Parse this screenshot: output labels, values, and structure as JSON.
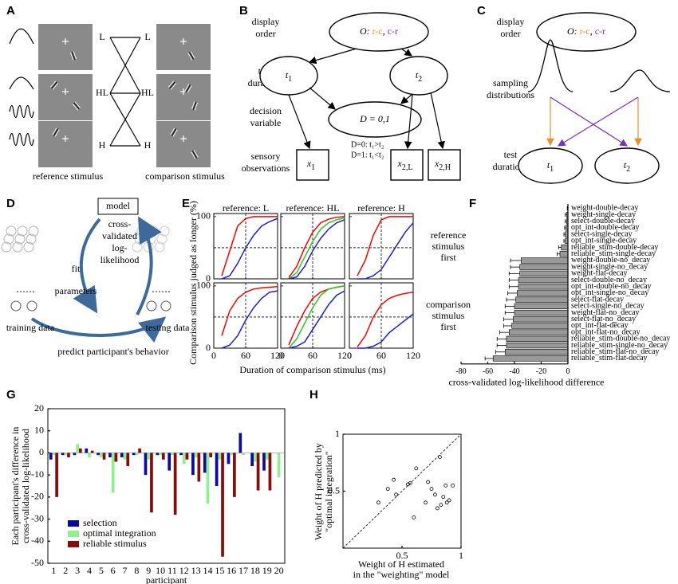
{
  "panel_labels": [
    "A",
    "B",
    "C",
    "D",
    "E",
    "F",
    "G",
    "H"
  ],
  "panel_a": {
    "levels": [
      {
        "label": "L",
        "color": "#2323d8"
      },
      {
        "label": "HL",
        "color": "#22c322"
      },
      {
        "label": "H",
        "color": "#e01b1b"
      }
    ],
    "reference_caption": "reference stimulus",
    "comparison_caption": "comparison stimulus"
  },
  "panel_b": {
    "display_order": [
      "display",
      "order"
    ],
    "order_symbol": "O:",
    "order_separator": ",",
    "orders": [
      {
        "label": "r-c",
        "color": "#f28c28"
      },
      {
        "label": "c-r",
        "color": "#7b2fbf"
      }
    ],
    "true_durations": [
      "true",
      "durations"
    ],
    "t_nodes": [
      {
        "label": "t",
        "sub": "1"
      },
      {
        "label": "t",
        "sub": "2"
      }
    ],
    "decision_variable": [
      "decision",
      "variable"
    ],
    "decision_node": "D = 0,1",
    "decision_rules": [
      "D=0: t₁>t₂",
      "D=1: t₁<t₂"
    ],
    "sensory_observations": [
      "sensory",
      "observations"
    ],
    "x_nodes": [
      {
        "label": "x",
        "sub": "1"
      },
      {
        "label": "x",
        "sub": "2,L"
      },
      {
        "label": "x",
        "sub": "2,H"
      }
    ]
  },
  "panel_c": {
    "display_order": [
      "display",
      "order"
    ],
    "order_symbol": "O:",
    "order_separator": ",",
    "orders": [
      {
        "label": "r-c",
        "color": "#f28c28"
      },
      {
        "label": "c-r",
        "color": "#7b2fbf"
      }
    ],
    "sampling_distributions": [
      "sampling",
      "distributions"
    ],
    "test_durations": [
      "test",
      "durations"
    ],
    "t_nodes": [
      {
        "label": "t",
        "sub": "1"
      },
      {
        "label": "t",
        "sub": "2"
      }
    ]
  },
  "panel_d": {
    "model": "model",
    "training_data": "training data",
    "fit_parameters": [
      "fit",
      "parameters"
    ],
    "cross_validated": [
      "cross-",
      "validated",
      "log-",
      "likelihood"
    ],
    "testing_data": "testing data",
    "predict": "predict participant's behavior"
  },
  "chart_data": [
    {
      "type": "line",
      "ylabel": "Comparison stimulus judged as longer (%)",
      "xlabel": "Duration of comparison stimulus (ms)",
      "xlim": [
        0,
        120
      ],
      "ylim": [
        0,
        105
      ],
      "xticks": [
        0,
        60,
        120
      ],
      "yticks": [
        0,
        100
      ],
      "dashed_x": 60,
      "dashed_y": 50,
      "x": [
        15,
        30,
        45,
        60,
        75,
        90,
        105,
        120
      ],
      "column_titles": [
        "reference: L",
        "reference: HL",
        "reference: H"
      ],
      "row_labels": [
        [
          "reference",
          "stimulus",
          "first"
        ],
        [
          "comparison",
          "stimulus",
          "first"
        ]
      ],
      "subplots": [
        {
          "series": [
            {
              "color": "#ff0000",
              "values": [
                5,
                45,
                85,
                97,
                100,
                100,
                100,
                100
              ]
            },
            {
              "color": "#1f1fd0",
              "values": [
                0,
                5,
                25,
                50,
                70,
                85,
                92,
                97
              ]
            }
          ]
        },
        {
          "series": [
            {
              "color": "#ff0000",
              "values": [
                2,
                20,
                50,
                75,
                90,
                96,
                99,
                100
              ]
            },
            {
              "color": "#22cc22",
              "values": [
                0,
                10,
                35,
                60,
                80,
                90,
                95,
                98
              ]
            },
            {
              "color": "#1f1fd0",
              "values": [
                0,
                3,
                20,
                45,
                65,
                80,
                90,
                95
              ]
            }
          ]
        },
        {
          "series": [
            {
              "color": "#ff0000",
              "values": [
                5,
                30,
                70,
                95,
                100,
                100,
                100,
                100
              ]
            },
            {
              "color": "#1f1fd0",
              "values": [
                0,
                0,
                5,
                15,
                35,
                55,
                75,
                90
              ]
            }
          ]
        },
        {
          "series": [
            {
              "color": "#ff0000",
              "values": [
                20,
                60,
                80,
                90,
                95,
                97,
                98,
                99
              ]
            },
            {
              "color": "#1f1fd0",
              "values": [
                0,
                5,
                20,
                45,
                65,
                80,
                90,
                92
              ]
            }
          ]
        },
        {
          "series": [
            {
              "color": "#ff0000",
              "values": [
                5,
                35,
                60,
                80,
                90,
                95,
                98,
                100
              ]
            },
            {
              "color": "#22cc22",
              "values": [
                0,
                15,
                40,
                65,
                85,
                95,
                98,
                100
              ]
            },
            {
              "color": "#1f1fd0",
              "values": [
                0,
                3,
                10,
                30,
                50,
                70,
                85,
                92
              ]
            }
          ]
        },
        {
          "series": [
            {
              "color": "#ff0000",
              "values": [
                2,
                20,
                50,
                70,
                80,
                85,
                88,
                90
              ]
            },
            {
              "color": "#1f1fd0",
              "values": [
                0,
                0,
                3,
                10,
                25,
                35,
                45,
                55
              ]
            }
          ]
        }
      ]
    },
    {
      "type": "bar",
      "orientation": "horizontal",
      "color": "#999999",
      "xlabel": "cross-validated log-likelihood difference",
      "xlim": [
        -80,
        0
      ],
      "xticks": [
        -80,
        -60,
        -40,
        -20,
        0
      ],
      "categories": [
        "weight-double-decay",
        "weight-single-decay",
        "select-double-decay",
        "opt_int-double-decay",
        "select-single-decay",
        "opt_int-single-decay",
        "reliable_stim-double-decay",
        "reliable_stim-single-decay",
        "weight-double-no_decay",
        "weight-single-no_decay",
        "weight-flat-decay",
        "select-double-no_decay",
        "opt_int-double-no_decay",
        "opt_int-single-no_decay",
        "select-flat-decay",
        "select-single-no_decay",
        "weight-flat-no_decay",
        "select-flat-no_decay",
        "opt_int-flat-decay",
        "opt_int-flat-no_decay",
        "reliable_stim-double-no_decay",
        "reliable_stim-single-no_decay",
        "reliable_stim-flat-no_decay",
        "reliable_stim-flat-decay"
      ],
      "values": [
        0,
        -1,
        -1,
        -1.5,
        -2,
        -2,
        -5,
        -6,
        -35,
        -36,
        -36,
        -37,
        -37,
        -38,
        -39,
        -40,
        -40,
        -41,
        -42,
        -44,
        -46,
        -46,
        -47,
        -56
      ],
      "errors": [
        0.5,
        1,
        1,
        1,
        1,
        1,
        2,
        2,
        8,
        7,
        8,
        7,
        7,
        7,
        7,
        7,
        7,
        7,
        6,
        7,
        7,
        7,
        7,
        6
      ]
    },
    {
      "type": "bar",
      "orientation": "vertical",
      "ylabel": [
        "Each participant's difference in",
        "cross-validated log-likelihood"
      ],
      "xlabel": "participant",
      "ylim": [
        -50,
        20
      ],
      "yticks": [
        -50,
        -40,
        -30,
        -20,
        -10,
        0,
        10,
        20
      ],
      "legend": "lower left",
      "categories": [
        "1",
        "2",
        "3",
        "4",
        "5",
        "6",
        "7",
        "8",
        "9",
        "10",
        "11",
        "12",
        "13",
        "14",
        "15",
        "16",
        "17",
        "18",
        "19",
        "20"
      ],
      "series": [
        {
          "name": "selection",
          "color": "#0a0aa0",
          "values": [
            -3,
            -1,
            -1,
            2,
            -1,
            -2,
            -2,
            -1,
            -10,
            -1,
            -8,
            -1,
            -10,
            -9,
            -15,
            -5,
            9,
            -6,
            -8,
            0
          ]
        },
        {
          "name": "optimal integration",
          "color": "#8ef08e",
          "values": [
            -1,
            -1,
            4,
            -2,
            -2,
            -18,
            -3,
            -1,
            -3,
            -1,
            -1,
            -5,
            -2,
            -23,
            -3,
            -1,
            -1,
            -4,
            -3,
            -11
          ]
        },
        {
          "name": "reliable stimulus",
          "color": "#8b0a0a",
          "values": [
            -20,
            -2,
            2,
            1,
            -3,
            -4,
            -6,
            2,
            -27,
            -3,
            -28,
            -3,
            -13,
            -2,
            -47,
            -20,
            0,
            -17,
            -17,
            0
          ]
        }
      ]
    },
    {
      "type": "scatter",
      "xlabel": [
        "Weight of H estimated",
        "in the \"weighting\" model"
      ],
      "ylabel": [
        "Weight of H predicted by",
        "\"optimal integration\""
      ],
      "xlim": [
        0,
        1
      ],
      "ylim": [
        0,
        1
      ],
      "xticks": [
        0.5,
        1
      ],
      "yticks": [
        0.5,
        1
      ],
      "diagonal": true,
      "x": [
        0.3,
        0.38,
        0.43,
        0.45,
        0.55,
        0.57,
        0.6,
        0.62,
        0.7,
        0.72,
        0.75,
        0.78,
        0.8,
        0.82,
        0.83,
        0.85,
        0.87,
        0.88,
        0.9,
        0.93
      ],
      "y": [
        0.4,
        0.52,
        0.6,
        0.47,
        0.56,
        0.57,
        0.27,
        0.7,
        0.4,
        0.58,
        0.52,
        0.47,
        0.35,
        0.8,
        0.38,
        0.45,
        0.55,
        0.4,
        0.42,
        0.55
      ]
    }
  ]
}
